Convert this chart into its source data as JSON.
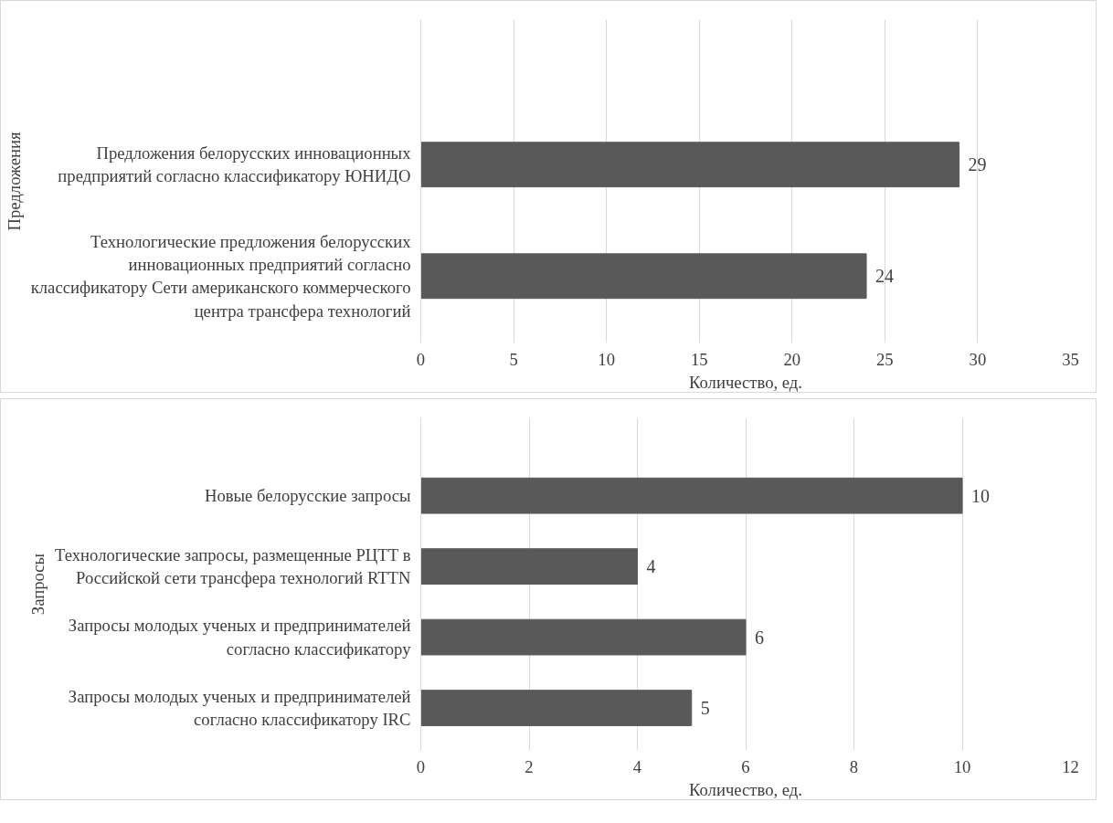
{
  "chart_data": [
    {
      "type": "bar",
      "orientation": "horizontal",
      "ylabel": "Предложения",
      "xlabel": "Количество, ед.",
      "categories": [
        "Предложения белорусских инновационных\nпредприятий согласно классификатору ЮНИДО",
        "Технологические предложения белорусских\nинновационных предприятий согласно\nклассификатору Сети американского коммерческого\nцентра трансфера технологий"
      ],
      "values": [
        29,
        24
      ],
      "color": "#595959",
      "xlim": [
        0,
        35
      ],
      "xticks": [
        0,
        5,
        10,
        15,
        20,
        25,
        30,
        35
      ],
      "grid": "x",
      "data_labels": true
    },
    {
      "type": "bar",
      "orientation": "horizontal",
      "ylabel": "Запросы",
      "xlabel": "Количество, ед.",
      "categories": [
        "Новые белорусские запросы",
        "Технологические запросы, размещенные РЦТТ в\nРоссийской сети трансфера технологий RTTN",
        "Запросы молодых ученых и предпринимателей\nсогласно классификатору",
        "Запросы молодых ученых и предпринимателей\nсогласно классификатору IRC"
      ],
      "values": [
        10,
        4,
        6,
        5
      ],
      "color": "#595959",
      "xlim": [
        0,
        12
      ],
      "xticks": [
        0,
        2,
        4,
        6,
        8,
        10,
        12
      ],
      "grid": "x",
      "data_labels": true
    }
  ]
}
